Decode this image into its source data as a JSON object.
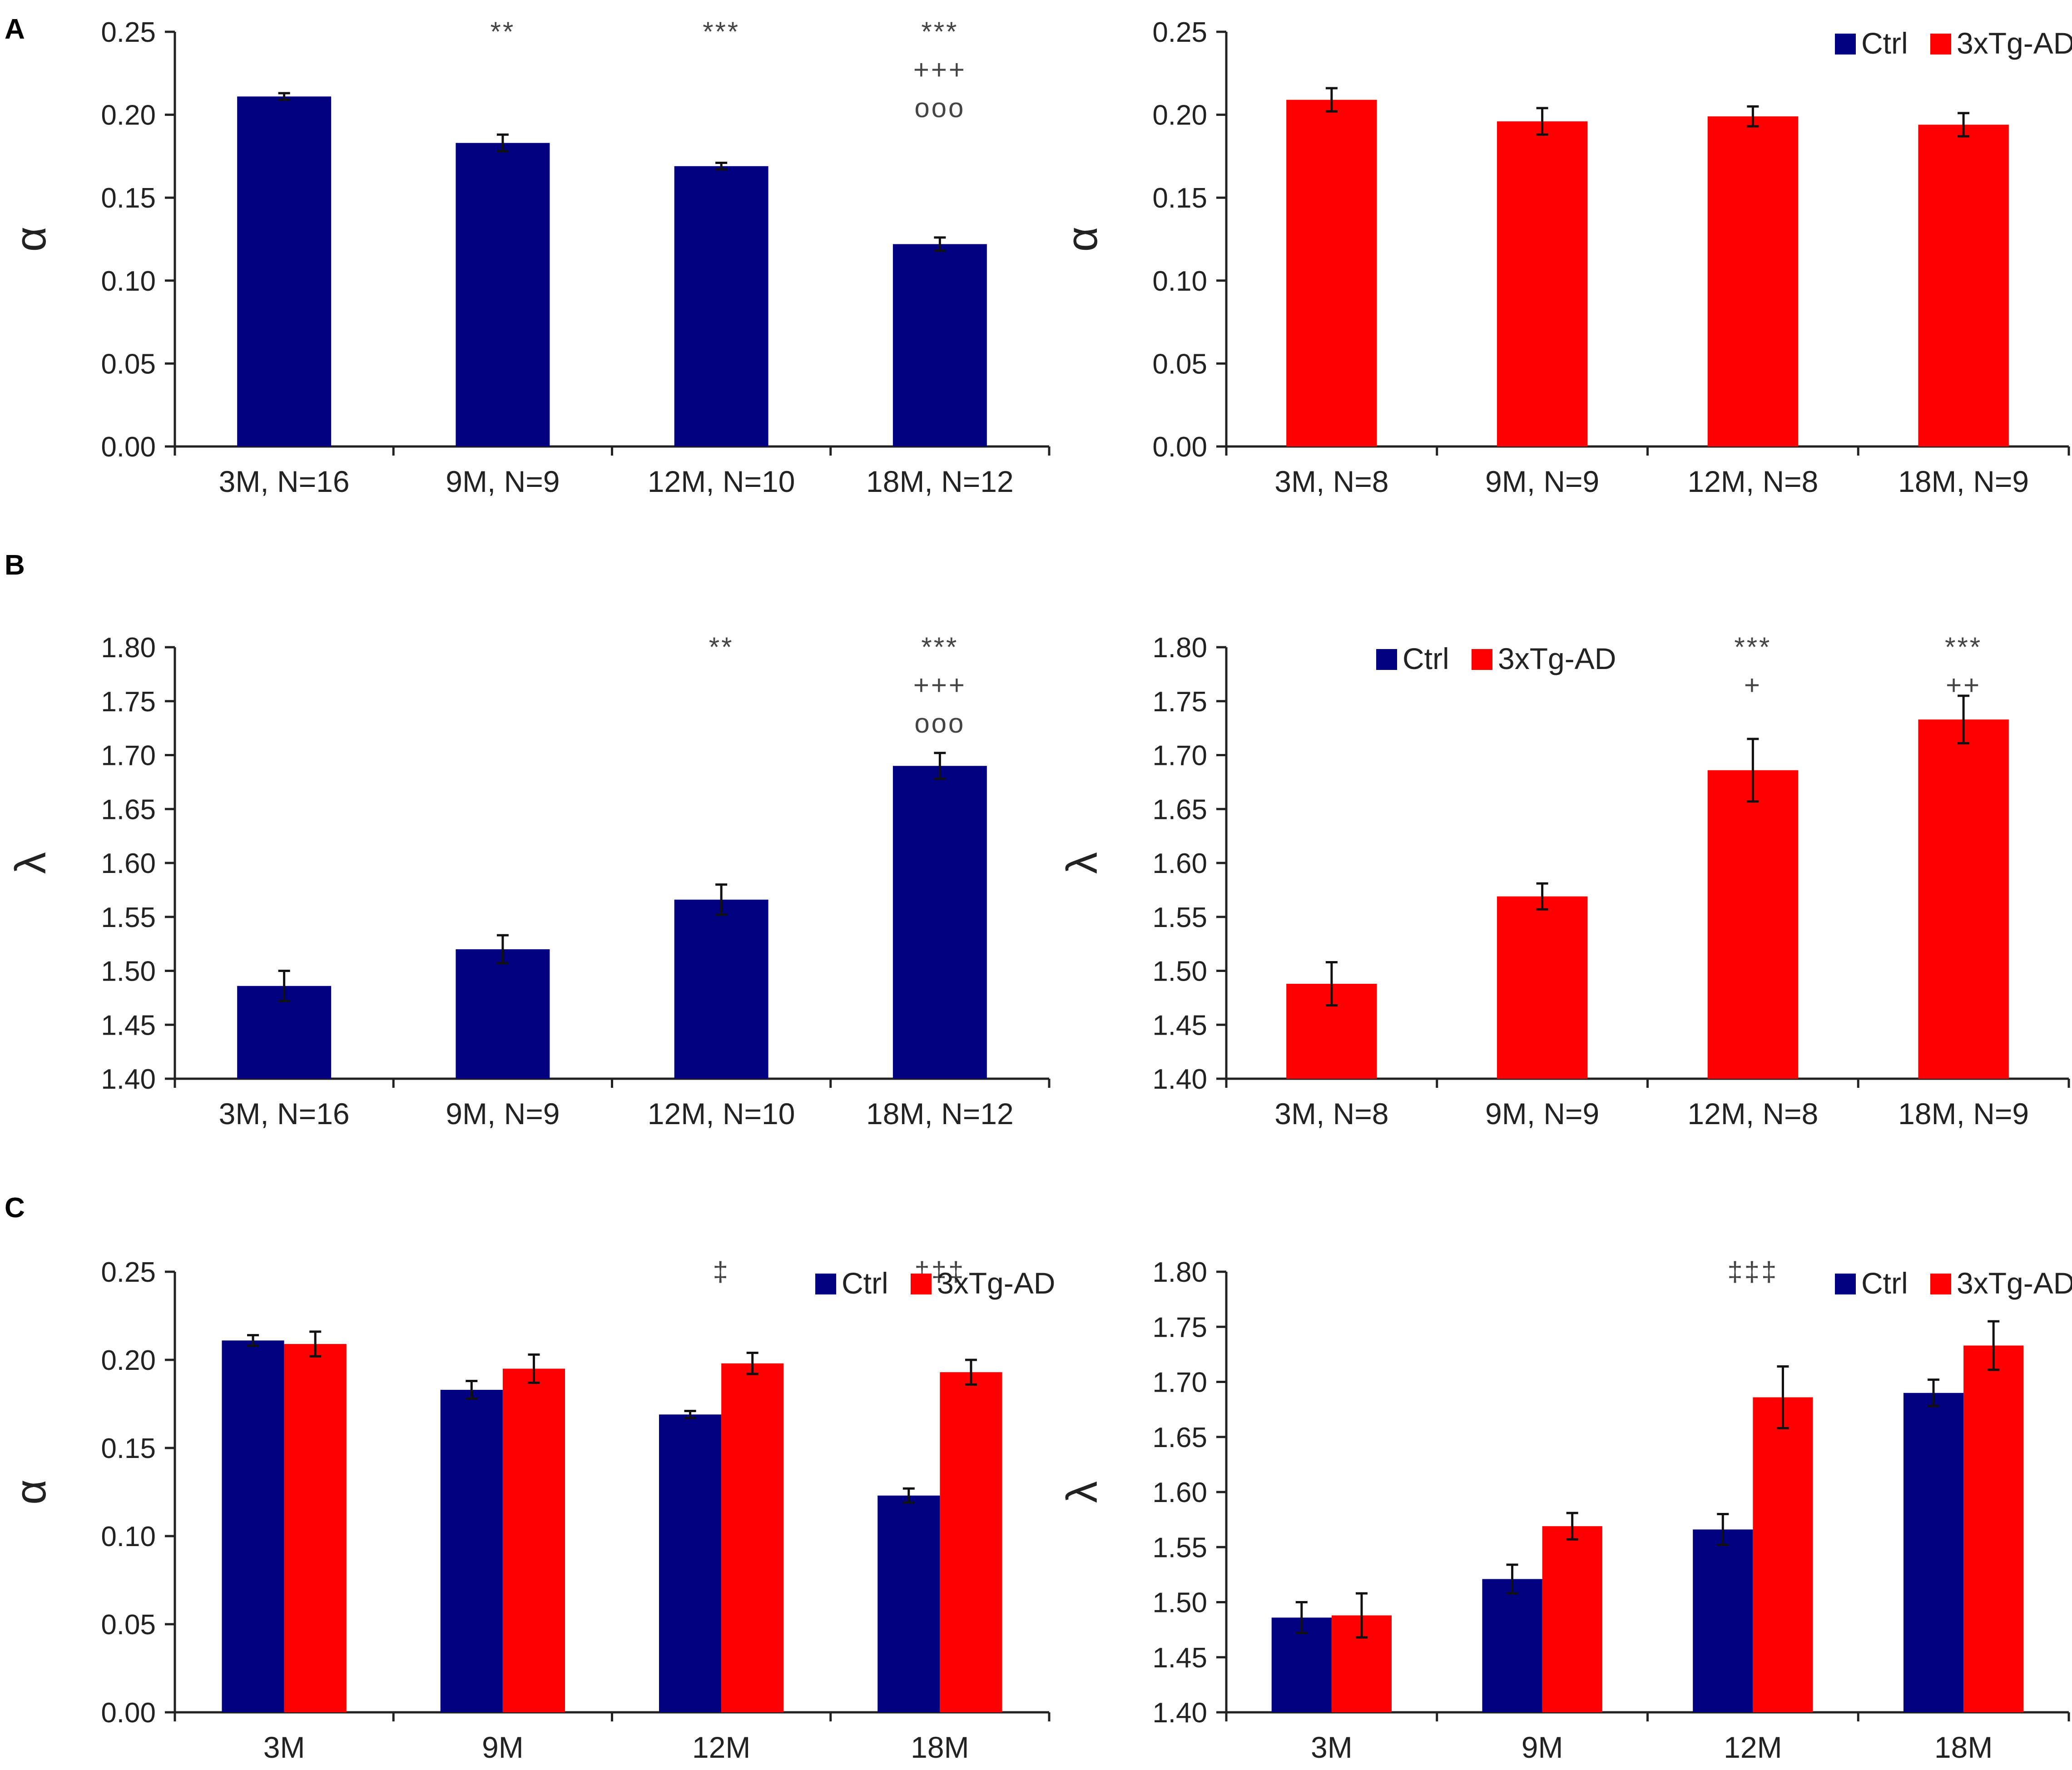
{
  "figure": {
    "panel_labels": [
      "A",
      "B",
      "C"
    ]
  },
  "colors": {
    "ctrl": "#000080",
    "ad": "#ff0000",
    "axis": "#222222"
  },
  "chart_data": [
    {
      "id": "A-left",
      "type": "bar",
      "panel": "A",
      "ylabel": "α",
      "ylim": [
        0,
        0.25
      ],
      "yticks": [
        "0.00",
        "0.05",
        "0.10",
        "0.15",
        "0.20",
        "0.25"
      ],
      "categories": [
        "3M, N=16",
        "9M, N=9",
        "12M, N=10",
        "18M, N=12"
      ],
      "legend": null,
      "series": [
        {
          "name": "Ctrl",
          "color": "#000080",
          "values": [
            0.211,
            0.183,
            0.169,
            0.122
          ],
          "errors": [
            0.002,
            0.005,
            0.002,
            0.004
          ]
        }
      ],
      "annotations": [
        {
          "category": 1,
          "lines": [
            "**"
          ]
        },
        {
          "category": 2,
          "lines": [
            "***"
          ]
        },
        {
          "category": 3,
          "lines": [
            "***",
            "+++",
            "ooo"
          ]
        }
      ]
    },
    {
      "id": "A-right",
      "type": "bar",
      "panel": "A",
      "ylabel": "α",
      "ylim": [
        0,
        0.25
      ],
      "yticks": [
        "0.00",
        "0.05",
        "0.10",
        "0.15",
        "0.20",
        "0.25"
      ],
      "categories": [
        "3M, N=8",
        "9M, N=9",
        "12M, N=8",
        "18M, N=9"
      ],
      "legend": {
        "position": "top-right",
        "entries": [
          {
            "label": "Ctrl",
            "color": "#000080"
          },
          {
            "label": "3xTg-AD",
            "color": "#ff0000"
          }
        ]
      },
      "series": [
        {
          "name": "3xTg-AD",
          "color": "#ff0000",
          "values": [
            0.209,
            0.196,
            0.199,
            0.194
          ],
          "errors": [
            0.007,
            0.008,
            0.006,
            0.007
          ]
        }
      ],
      "annotations": []
    },
    {
      "id": "B-left",
      "type": "bar",
      "panel": "B",
      "ylabel": "λ",
      "ylim": [
        1.4,
        1.8
      ],
      "yticks": [
        "1.40",
        "1.45",
        "1.50",
        "1.55",
        "1.60",
        "1.65",
        "1.70",
        "1.75",
        "1.80"
      ],
      "categories": [
        "3M, N=16",
        "9M, N=9",
        "12M, N=10",
        "18M, N=12"
      ],
      "legend": null,
      "series": [
        {
          "name": "Ctrl",
          "color": "#000080",
          "values": [
            1.486,
            1.52,
            1.566,
            1.69
          ],
          "errors": [
            0.014,
            0.013,
            0.014,
            0.012
          ]
        }
      ],
      "annotations": [
        {
          "category": 2,
          "lines": [
            "**"
          ]
        },
        {
          "category": 3,
          "lines": [
            "***",
            "+++",
            "ooo"
          ]
        }
      ]
    },
    {
      "id": "B-right",
      "type": "bar",
      "panel": "B",
      "ylabel": "λ",
      "ylim": [
        1.4,
        1.8
      ],
      "yticks": [
        "1.40",
        "1.45",
        "1.50",
        "1.55",
        "1.60",
        "1.65",
        "1.70",
        "1.75",
        "1.80"
      ],
      "categories": [
        "3M, N=8",
        "9M, N=9",
        "12M, N=8",
        "18M, N=9"
      ],
      "legend": {
        "position": "top-left",
        "entries": [
          {
            "label": "Ctrl",
            "color": "#000080"
          },
          {
            "label": "3xTg-AD",
            "color": "#ff0000"
          }
        ]
      },
      "series": [
        {
          "name": "3xTg-AD",
          "color": "#ff0000",
          "values": [
            1.488,
            1.569,
            1.686,
            1.733
          ],
          "errors": [
            0.02,
            0.012,
            0.029,
            0.022
          ]
        }
      ],
      "annotations": [
        {
          "category": 2,
          "lines": [
            "***",
            "+"
          ]
        },
        {
          "category": 3,
          "lines": [
            "***",
            "++"
          ]
        }
      ]
    },
    {
      "id": "C-left",
      "type": "bar",
      "panel": "C",
      "ylabel": "α",
      "ylim": [
        0,
        0.25
      ],
      "yticks": [
        "0.00",
        "0.05",
        "0.10",
        "0.15",
        "0.20",
        "0.25"
      ],
      "categories": [
        "3M",
        "9M",
        "12M",
        "18M"
      ],
      "legend": {
        "position": "top-right",
        "entries": [
          {
            "label": "Ctrl",
            "color": "#000080"
          },
          {
            "label": "3xTg-AD",
            "color": "#ff0000"
          }
        ]
      },
      "series": [
        {
          "name": "Ctrl",
          "color": "#000080",
          "values": [
            0.211,
            0.183,
            0.169,
            0.123
          ],
          "errors": [
            0.003,
            0.005,
            0.002,
            0.004
          ]
        },
        {
          "name": "3xTg-AD",
          "color": "#ff0000",
          "values": [
            0.209,
            0.195,
            0.198,
            0.193
          ],
          "errors": [
            0.007,
            0.008,
            0.006,
            0.007
          ]
        }
      ],
      "annotations": [
        {
          "category": 2,
          "lines": [
            "‡"
          ]
        },
        {
          "category": 3,
          "lines": [
            "‡‡‡"
          ]
        }
      ]
    },
    {
      "id": "C-right",
      "type": "bar",
      "panel": "C",
      "ylabel": "λ",
      "ylim": [
        1.4,
        1.8
      ],
      "yticks": [
        "1.40",
        "1.45",
        "1.50",
        "1.55",
        "1.60",
        "1.65",
        "1.70",
        "1.75",
        "1.80"
      ],
      "categories": [
        "3M",
        "9M",
        "12M",
        "18M"
      ],
      "legend": {
        "position": "top-right",
        "entries": [
          {
            "label": "Ctrl",
            "color": "#000080"
          },
          {
            "label": "3xTg-AD",
            "color": "#ff0000"
          }
        ]
      },
      "series": [
        {
          "name": "Ctrl",
          "color": "#000080",
          "values": [
            1.486,
            1.521,
            1.566,
            1.69
          ],
          "errors": [
            0.014,
            0.013,
            0.014,
            0.012
          ]
        },
        {
          "name": "3xTg-AD",
          "color": "#ff0000",
          "values": [
            1.488,
            1.569,
            1.686,
            1.733
          ],
          "errors": [
            0.02,
            0.012,
            0.028,
            0.022
          ]
        }
      ],
      "annotations": [
        {
          "category": 2,
          "lines": [
            "‡‡‡"
          ]
        }
      ]
    }
  ]
}
